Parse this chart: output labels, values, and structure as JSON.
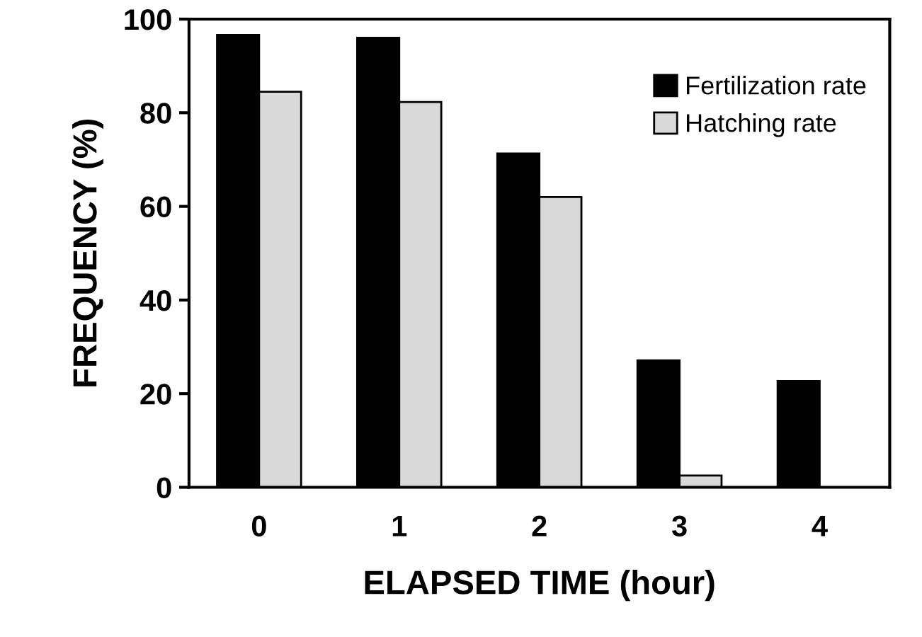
{
  "chart_data": {
    "type": "bar",
    "xlabel": "ELAPSED TIME (hour)",
    "ylabel": "FREQUENCY (%)",
    "categories": [
      "0",
      "1",
      "2",
      "3",
      "4"
    ],
    "series": [
      {
        "name": "Fertilization rate",
        "color": "#000000",
        "values": [
          96.6,
          96.0,
          71.3,
          27.1,
          22.7
        ]
      },
      {
        "name": "Hatching rate",
        "color": "#d9d9d9",
        "values": [
          84.5,
          82.3,
          62.0,
          2.5,
          null
        ]
      }
    ],
    "ylim": [
      0,
      100
    ],
    "yticks": [
      0,
      20,
      40,
      60,
      80,
      100
    ],
    "grid": false,
    "legend": "top right"
  }
}
